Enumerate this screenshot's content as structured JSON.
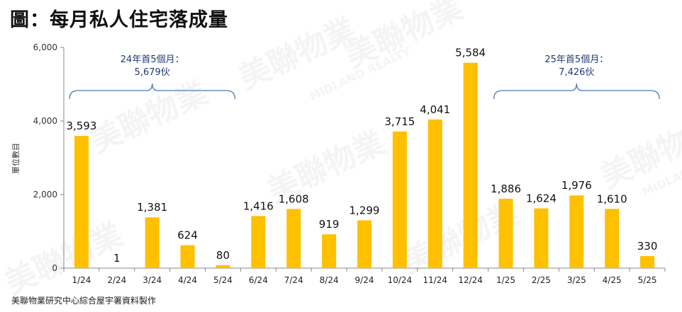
{
  "title": "圖：每月私人住宅落成量",
  "source": "美聯物業研究中心綜合屋宇署資料製作",
  "watermark": {
    "brand": "美聯物業",
    "sub": "MIDLAND REALTY"
  },
  "colors": {
    "bar": "#FFC000",
    "annotation": "#1F3B73",
    "bracket": "#4A78B8",
    "axis": "#888888"
  },
  "chart_data": {
    "type": "bar",
    "title": "圖：每月私人住宅落成量",
    "xlabel": "",
    "ylabel": "單位數目",
    "ylim": [
      0,
      6000
    ],
    "yticks": [
      0,
      2000,
      4000,
      6000
    ],
    "ytick_labels": [
      "0",
      "2,000",
      "4,000",
      "6,000"
    ],
    "grid": false,
    "categories": [
      "1/24",
      "2/24",
      "3/24",
      "4/24",
      "5/24",
      "6/24",
      "7/24",
      "8/24",
      "9/24",
      "10/24",
      "11/24",
      "12/24",
      "1/25",
      "2/25",
      "3/25",
      "4/25",
      "5/25"
    ],
    "values": [
      3593,
      1,
      1381,
      624,
      80,
      1416,
      1608,
      919,
      1299,
      3715,
      4041,
      5584,
      1886,
      1624,
      1976,
      1610,
      330
    ],
    "value_labels": [
      "3,593",
      "1",
      "1,381",
      "624",
      "80",
      "1,416",
      "1,608",
      "919",
      "1,299",
      "3,715",
      "4,041",
      "5,584",
      "1,886",
      "1,624",
      "1,976",
      "1,610",
      "330"
    ],
    "annotations": [
      {
        "line1": "24年首5個月：",
        "line2": "5,679伙",
        "from": 0,
        "to": 4
      },
      {
        "line1": "25年首5個月：",
        "line2": "7,426伙",
        "from": 12,
        "to": 16
      }
    ]
  }
}
